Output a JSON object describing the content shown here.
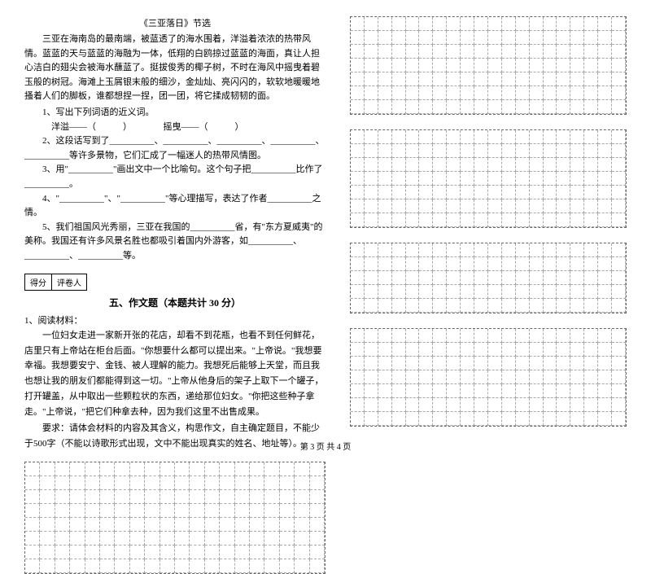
{
  "passage": {
    "title": "《三亚落日》节选",
    "paragraphs": [
      "三亚在海南岛的最南端，被蓝透了的海水围着，洋溢着浓浓的热带风情。蓝蓝的天与蓝蓝的海融为一体，低翔的白鸥掠过蓝蓝的海面，真让人担心洁白的翅尖会被海水蘸蓝了。挺拔俊秀的椰子树，不时在海风中摇曳着碧玉般的树冠。海滩上玉屑银末般的细沙，金灿灿、亮闪闪的，软软地暖暖地搔着人们的脚板，谁都想捏一捏，团一团，将它揉成韧韧的面。"
    ],
    "questions": [
      "1、写出下列词语的近义词。",
      "　洋溢——（　　　）　　　　摇曳——（　　　）",
      "2、这段话写到了__________、__________、__________、__________、__________等许多景物，它们汇成了一幅迷人的热带风情图。",
      "3、用\"__________\"画出文中一个比喻句。这个句子把__________比作了__________。",
      "4、\"__________\"、\"__________\"等心理描写，表达了作者__________之情。",
      "5、我们祖国风光秀丽，三亚在我国的__________省，有\"东方夏威夷\"的美称。我国还有许多风景名胜也都吸引着国内外游客，如__________、__________、__________等。"
    ]
  },
  "scoreBox": {
    "col1": "得分",
    "col2": "评卷人"
  },
  "section5": {
    "title": "五、作文题（本题共计 30 分）",
    "prompt_label": "1、阅读材料：",
    "paragraphs": [
      "一位妇女走进一家新开张的花店，却看不到花瓶，也看不到任何鲜花，店里只有上帝站在柜台后面。\"你想要什么都可以提出来。\"上帝说。\"我想要幸福。我想要安宁、金钱、被人理解的能力。我想死后能够上天堂，而且我也想让我的朋友们都能得到这一切。\"上帝从他身后的架子上取下一个罐子，打开罐盖，从中取出一些颗粒状的东西，递给那位妇女。\"你把这些种子拿走。\"上帝说，\"把它们种拿去种，因为我们这里不出售成果。",
      "要求：请体会材料的内容及其含义，构思作文，自主确定题目，不能少于500字（不能以诗歌形式出现，文中不能出现真实的姓名、地址等）。"
    ]
  },
  "footer": "第 3 页 共 4 页",
  "grids": {
    "left_rows": 8,
    "left_cols": 20,
    "right_grids": [
      7,
      7,
      5,
      7
    ]
  }
}
